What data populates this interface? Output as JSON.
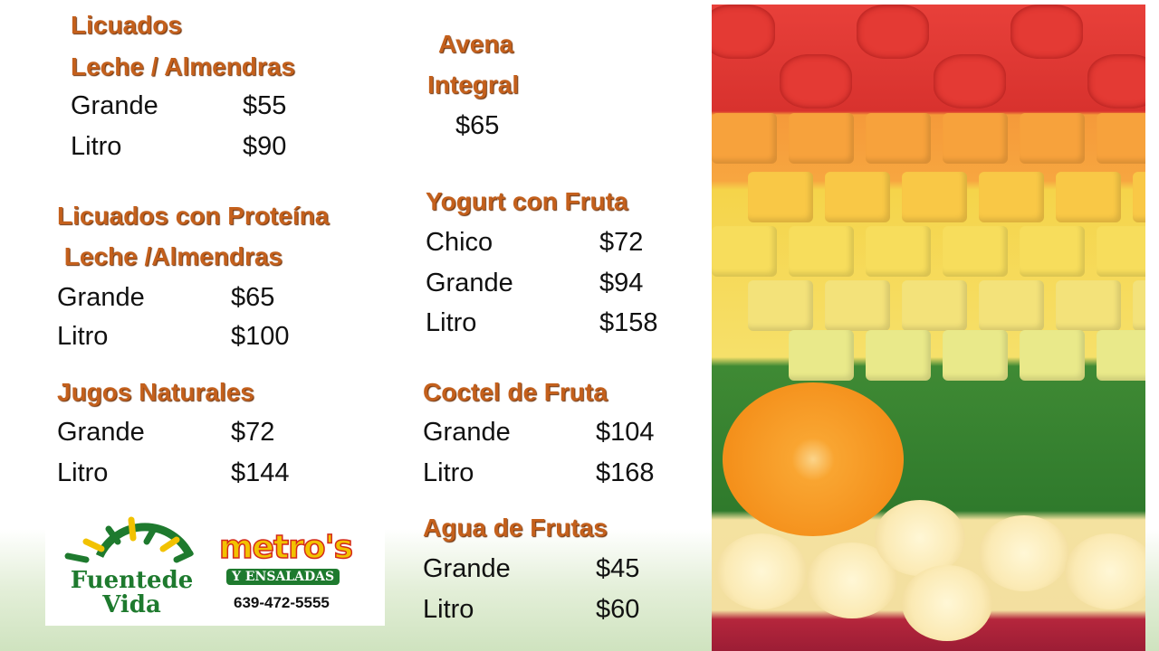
{
  "sections": {
    "licuados": {
      "title1": "Licuados",
      "title2": "Leche / Almendras",
      "rows": [
        {
          "size": "Grande",
          "price": "$55"
        },
        {
          "size": "Litro",
          "price": "$90"
        }
      ]
    },
    "avena": {
      "title1": "Avena",
      "title2": "Integral",
      "price": "$65"
    },
    "proteina": {
      "title1": "Licuados con Proteína",
      "title2": " Leche /Almendras",
      "rows": [
        {
          "size": "Grande",
          "price": "$65"
        },
        {
          "size": "Litro",
          "price": "$100"
        }
      ]
    },
    "jugos": {
      "title": "Jugos Naturales",
      "rows": [
        {
          "size": "Grande",
          "price": "$72"
        },
        {
          "size": "Litro",
          "price": "$144"
        }
      ]
    },
    "yogurt": {
      "title": "Yogurt con Fruta",
      "rows": [
        {
          "size": "Chico",
          "price": "$72"
        },
        {
          "size": "Grande",
          "price": "$94"
        },
        {
          "size": "Litro",
          "price": "$158"
        }
      ]
    },
    "coctel": {
      "title": "Coctel de Fruta",
      "rows": [
        {
          "size": "Grande",
          "price": "$104"
        },
        {
          "size": "Litro",
          "price": "$168"
        }
      ]
    },
    "agua": {
      "title": "Agua de Frutas",
      "rows": [
        {
          "size": "Grande",
          "price": "$45"
        },
        {
          "size": "Litro",
          "price": "$60"
        }
      ]
    }
  },
  "logo": {
    "brand1_line1": "Fuentede",
    "brand1_line2": "Vida",
    "brand2": "metro's",
    "brand2_sub": "Y ENSALADAS",
    "phone": "639-472-5555"
  },
  "colors": {
    "heading": "#c4601c",
    "brand_green": "#1e7a2e",
    "brand_yellow": "#f2c200",
    "brand_red": "#d42a1a"
  }
}
